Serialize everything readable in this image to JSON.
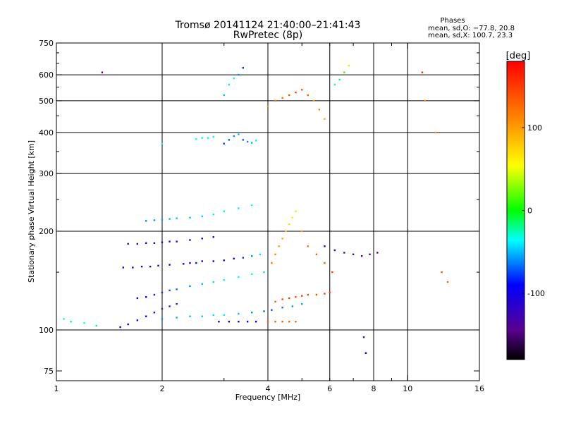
{
  "chart_data": {
    "type": "scatter",
    "title": "Tromsø 20141124 21:40:00–21:41:43",
    "subtitle": "RwPretec (8p)",
    "xlabel": "Frequency [MHz]",
    "ylabel": "Stationary phase Virtual Height [km]",
    "x_scale": "log",
    "y_scale": "log",
    "xlim": [
      1,
      16
    ],
    "ylim": [
      70,
      750
    ],
    "x_ticks": [
      1,
      2,
      4,
      6,
      8,
      10,
      16
    ],
    "y_ticks": [
      75,
      100,
      200,
      300,
      400,
      500,
      600,
      750
    ],
    "x_grid": [
      2,
      4,
      6,
      8,
      10
    ],
    "y_grid": [
      100,
      200,
      300,
      400,
      500,
      600
    ],
    "grid": true,
    "stats": {
      "heading": "Phases",
      "line_o": "mean, sd,O: −77.8, 20.8",
      "line_x": "mean, sd,X: 100.7, 23.3"
    },
    "colorbar": {
      "label": "[deg]",
      "min": -180,
      "max": 180,
      "ticks": [
        -100,
        0,
        100
      ],
      "placement": "right"
    },
    "series": [
      {
        "x": [
          1.52,
          1.6,
          1.7,
          1.8,
          1.9,
          2.0,
          2.1,
          2.2
        ],
        "y": [
          102,
          104,
          107,
          110,
          113,
          116,
          118,
          120
        ],
        "phase": [
          -90,
          -92,
          -88,
          -95,
          -85,
          -80,
          -84,
          -82
        ]
      },
      {
        "x": [
          2.0,
          2.2,
          2.4,
          2.6,
          2.8,
          3.0,
          3.3,
          3.6,
          3.9,
          4.1,
          4.4,
          4.7,
          5.0
        ],
        "y": [
          108,
          109,
          110,
          110,
          111,
          111,
          112,
          113,
          114,
          115,
          117,
          118,
          120
        ],
        "phase": [
          -60,
          -55,
          -50,
          -45,
          -40,
          -40,
          -50,
          -60,
          -70,
          -72,
          -65,
          -60,
          -55
        ]
      },
      {
        "x": [
          2.9,
          3.1,
          3.3,
          3.5,
          3.7
        ],
        "y": [
          106,
          106,
          106,
          106,
          106
        ],
        "phase": [
          -90,
          -90,
          -90,
          -90,
          -90
        ]
      },
      {
        "x": [
          4.0,
          4.2,
          4.4,
          4.6,
          4.8
        ],
        "y": [
          106,
          106,
          106,
          106,
          106
        ],
        "phase": [
          130,
          130,
          130,
          130,
          130
        ]
      },
      {
        "x": [
          1.7,
          1.8,
          1.9,
          2.0,
          2.1,
          2.2,
          2.4,
          2.6,
          2.8,
          3.0,
          3.3,
          3.6,
          3.9
        ],
        "y": [
          125,
          126,
          128,
          130,
          132,
          133,
          136,
          138,
          140,
          142,
          145,
          148,
          150
        ],
        "phase": [
          -100,
          -90,
          -85,
          -80,
          -75,
          -70,
          -60,
          -50,
          -45,
          -40,
          -30,
          -30,
          -20
        ]
      },
      {
        "x": [
          4.2,
          4.4,
          4.6,
          4.8,
          5.0,
          5.2,
          5.5,
          5.8,
          6.0
        ],
        "y": [
          122,
          124,
          125,
          126,
          127,
          128,
          128,
          129,
          130
        ],
        "phase": [
          140,
          145,
          150,
          140,
          150,
          145,
          140,
          150,
          145
        ]
      },
      {
        "x": [
          1.55,
          1.65,
          1.75,
          1.85,
          1.95,
          2.1,
          2.3,
          2.5
        ],
        "y": [
          155,
          155,
          156,
          156,
          157,
          158,
          159,
          160
        ],
        "phase": [
          -110,
          -105,
          -105,
          -110,
          -100,
          -95,
          -90,
          -85
        ]
      },
      {
        "x": [
          2.4,
          2.6,
          2.8,
          3.0,
          3.2,
          3.4,
          3.6,
          3.8
        ],
        "y": [
          160,
          162,
          162,
          163,
          165,
          166,
          168,
          170
        ],
        "phase": [
          -120,
          -115,
          -110,
          -105,
          -90,
          -80,
          -60,
          -40
        ]
      },
      {
        "x": [
          1.6,
          1.7,
          1.8,
          1.9,
          2.0,
          2.1,
          2.2,
          2.4,
          2.6,
          2.8
        ],
        "y": [
          183,
          183,
          184,
          184,
          185,
          186,
          186,
          188,
          190,
          192
        ],
        "phase": [
          -130,
          -128,
          -125,
          -125,
          -120,
          -118,
          -115,
          -112,
          -108,
          -105
        ]
      },
      {
        "x": [
          1.8,
          1.9,
          2.0,
          2.1,
          2.2,
          2.4,
          2.6,
          2.8,
          3.0,
          3.3,
          3.6
        ],
        "y": [
          215,
          216,
          217,
          218,
          219,
          220,
          222,
          225,
          230,
          235,
          240
        ],
        "phase": [
          -60,
          -58,
          -55,
          -52,
          -50,
          -48,
          -45,
          -42,
          -40,
          -38,
          -35
        ]
      },
      {
        "x": [
          4.1,
          4.2,
          4.3,
          4.4,
          4.5,
          4.6,
          4.7,
          4.8,
          5.0,
          5.2,
          5.5,
          5.8,
          6.1
        ],
        "y": [
          160,
          170,
          180,
          190,
          200,
          210,
          220,
          230,
          200,
          180,
          170,
          160,
          150
        ],
        "phase": [
          120,
          110,
          100,
          90,
          80,
          70,
          60,
          40,
          100,
          120,
          130,
          140,
          150
        ]
      },
      {
        "x": [
          5.8,
          6.2,
          6.6,
          7.0,
          7.4,
          7.8,
          8.2
        ],
        "y": [
          180,
          175,
          172,
          170,
          168,
          170,
          172
        ],
        "phase": [
          -100,
          -110,
          -120,
          -130,
          -140,
          -145,
          -150
        ]
      },
      {
        "x": [
          3.0,
          3.1,
          3.2,
          3.3,
          3.4,
          3.5,
          3.6,
          3.7
        ],
        "y": [
          370,
          380,
          390,
          395,
          380,
          375,
          372,
          378
        ],
        "phase": [
          -80,
          -70,
          -60,
          -50,
          -70,
          -60,
          -50,
          -40
        ]
      },
      {
        "x": [
          2.0,
          2.5,
          2.6,
          2.7,
          2.8
        ],
        "y": [
          370,
          382,
          385,
          385,
          388
        ],
        "phase": [
          -40,
          -30,
          -30,
          -30,
          -30
        ]
      },
      {
        "x": [
          3.0,
          3.1,
          3.2,
          3.3,
          3.4
        ],
        "y": [
          520,
          560,
          585,
          600,
          630
        ],
        "phase": [
          -50,
          -40,
          -30,
          -60,
          -80
        ]
      },
      {
        "x": [
          4.0,
          4.2,
          4.4,
          4.6,
          4.8,
          5.0,
          5.2,
          5.4,
          5.6,
          5.8
        ],
        "y": [
          480,
          500,
          510,
          520,
          530,
          540,
          520,
          500,
          470,
          440
        ],
        "phase": [
          110,
          120,
          130,
          140,
          150,
          140,
          130,
          100,
          110,
          90
        ]
      },
      {
        "x": [
          6.2,
          6.4,
          6.6,
          6.8
        ],
        "y": [
          560,
          580,
          610,
          640
        ],
        "phase": [
          -30,
          -20,
          10,
          40
        ]
      },
      {
        "x": [
          1.05,
          1.1,
          1.2,
          1.3,
          1.35
        ],
        "y": [
          108,
          106,
          105,
          103,
          610
        ],
        "phase": [
          -30,
          -20,
          -30,
          -20,
          -140
        ]
      },
      {
        "x": [
          7.5,
          7.6,
          11.0,
          11.2,
          12.0,
          12.5,
          13.0
        ],
        "y": [
          95,
          85,
          610,
          500,
          400,
          150,
          140
        ],
        "phase": [
          -120,
          -100,
          160,
          110,
          110,
          140,
          130
        ]
      }
    ]
  }
}
